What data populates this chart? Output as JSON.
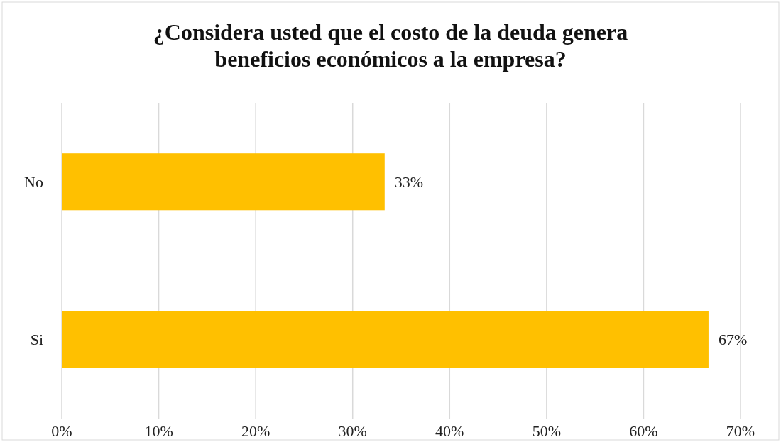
{
  "chart_data": {
    "type": "bar",
    "orientation": "horizontal",
    "title": "¿Considera usted que el costo de la deuda genera beneficios económicos a la empresa?",
    "categories": [
      "No",
      "Si"
    ],
    "values": [
      33.3,
      66.7
    ],
    "value_labels": [
      "33%",
      "67%"
    ],
    "color": "#ffc000",
    "xlim": [
      0,
      70
    ],
    "xticks": [
      {
        "value": 0,
        "label": "0%"
      },
      {
        "value": 10,
        "label": "10%"
      },
      {
        "value": 20,
        "label": "20%"
      },
      {
        "value": 30,
        "label": "30%"
      },
      {
        "value": 40,
        "label": "40%"
      },
      {
        "value": 50,
        "label": "50%"
      },
      {
        "value": 60,
        "label": "60%"
      },
      {
        "value": 70,
        "label": "70%"
      }
    ],
    "grid": "x"
  }
}
